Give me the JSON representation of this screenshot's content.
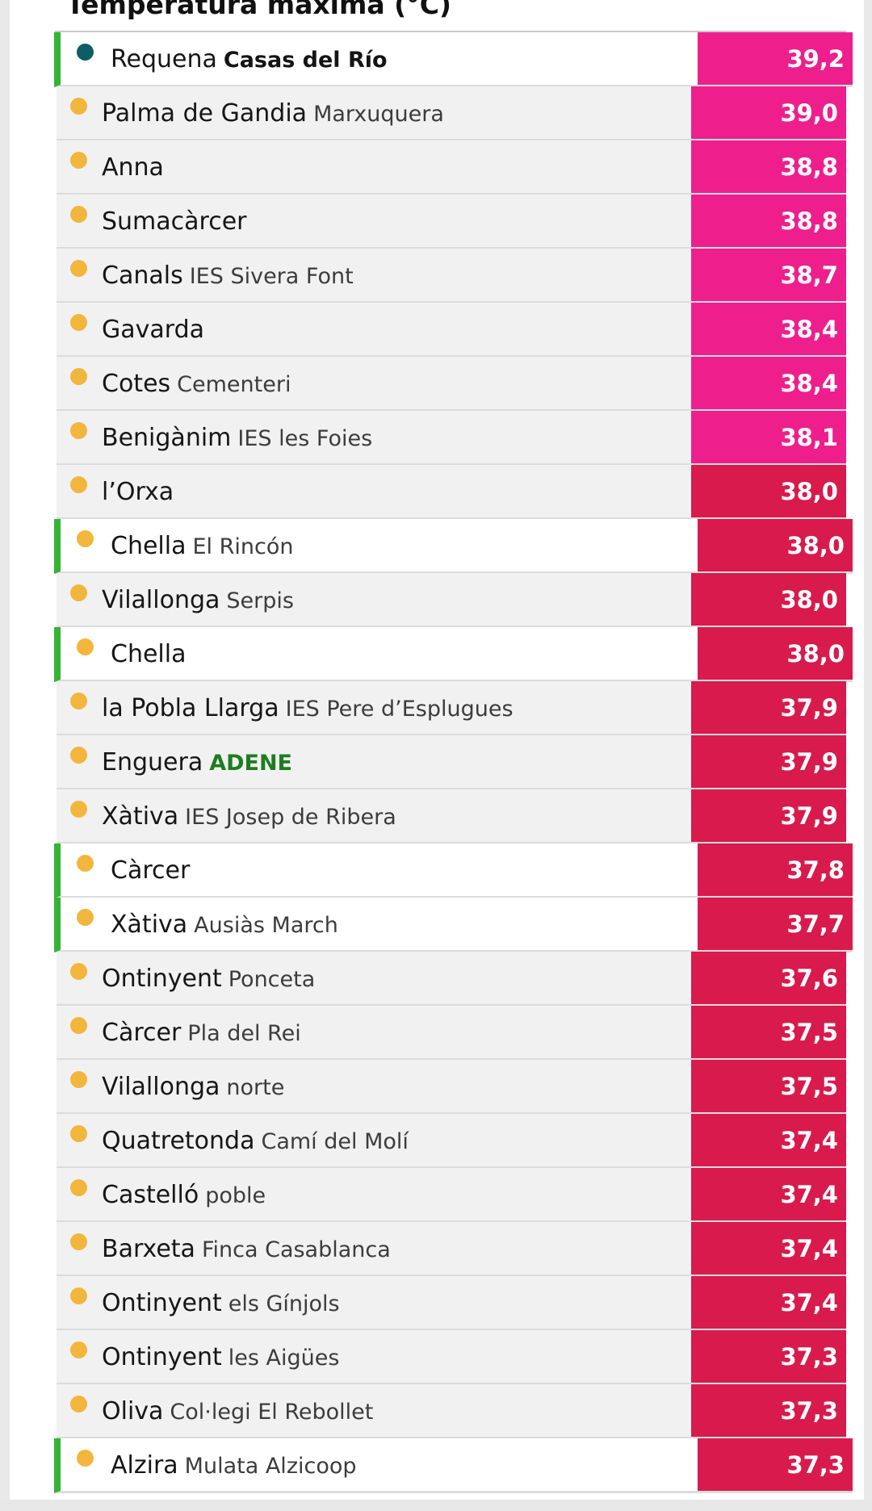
{
  "title": "Temperatura màxima (°C)",
  "colors": {
    "pink": "#ee1f8d",
    "red": "#d91a4c",
    "highlight": "#33b533",
    "dot_yellow": "#f2b63c",
    "dot_teal": "#0c5e63"
  },
  "rows": [
    {
      "name": "Requena",
      "sub": "Casas del Río",
      "sub_style": "bold",
      "value": "39,2",
      "hl": true,
      "dot": "teal",
      "band": "pink"
    },
    {
      "name": "Palma de Gandia",
      "sub": "Marxuquera",
      "value": "39,0",
      "hl": false,
      "dot": "yellow",
      "band": "pink"
    },
    {
      "name": "Anna",
      "sub": "",
      "value": "38,8",
      "hl": false,
      "dot": "yellow",
      "band": "pink"
    },
    {
      "name": "Sumacàrcer",
      "sub": "",
      "value": "38,8",
      "hl": false,
      "dot": "yellow",
      "band": "pink"
    },
    {
      "name": "Canals",
      "sub": "IES Sivera Font",
      "value": "38,7",
      "hl": false,
      "dot": "yellow",
      "band": "pink"
    },
    {
      "name": "Gavarda",
      "sub": "",
      "value": "38,4",
      "hl": false,
      "dot": "yellow",
      "band": "pink"
    },
    {
      "name": "Cotes",
      "sub": "Cementeri",
      "value": "38,4",
      "hl": false,
      "dot": "yellow",
      "band": "pink"
    },
    {
      "name": "Benigànim",
      "sub": "IES les Foies",
      "value": "38,1",
      "hl": false,
      "dot": "yellow",
      "band": "pink"
    },
    {
      "name": "l’Orxa",
      "sub": "",
      "value": "38,0",
      "hl": false,
      "dot": "yellow",
      "band": "red"
    },
    {
      "name": "Chella",
      "sub": "El Rincón",
      "value": "38,0",
      "hl": true,
      "dot": "yellow",
      "band": "red"
    },
    {
      "name": "Vilallonga",
      "sub": "Serpis",
      "value": "38,0",
      "hl": false,
      "dot": "yellow",
      "band": "red"
    },
    {
      "name": "Chella",
      "sub": "",
      "value": "38,0",
      "hl": true,
      "dot": "yellow",
      "band": "red"
    },
    {
      "name": "la Pobla Llarga",
      "sub": "IES Pere d’Esplugues",
      "value": "37,9",
      "hl": false,
      "dot": "yellow",
      "band": "red"
    },
    {
      "name": "Enguera",
      "sub": "ADENE",
      "sub_style": "green",
      "value": "37,9",
      "hl": false,
      "dot": "yellow",
      "band": "red"
    },
    {
      "name": "Xàtiva",
      "sub": "IES Josep de Ribera",
      "value": "37,9",
      "hl": false,
      "dot": "yellow",
      "band": "red"
    },
    {
      "name": "Càrcer",
      "sub": "",
      "value": "37,8",
      "hl": true,
      "dot": "yellow",
      "band": "red"
    },
    {
      "name": "Xàtiva",
      "sub": "Ausiàs March",
      "value": "37,7",
      "hl": true,
      "dot": "yellow",
      "band": "red"
    },
    {
      "name": "Ontinyent",
      "sub": "Ponceta",
      "value": "37,6",
      "hl": false,
      "dot": "yellow",
      "band": "red"
    },
    {
      "name": "Càrcer",
      "sub": "Pla del Rei",
      "value": "37,5",
      "hl": false,
      "dot": "yellow",
      "band": "red"
    },
    {
      "name": "Vilallonga",
      "sub": "norte",
      "value": "37,5",
      "hl": false,
      "dot": "yellow",
      "band": "red"
    },
    {
      "name": "Quatretonda",
      "sub": "Camí del Molí",
      "value": "37,4",
      "hl": false,
      "dot": "yellow",
      "band": "red"
    },
    {
      "name": "Castelló",
      "sub": "poble",
      "value": "37,4",
      "hl": false,
      "dot": "yellow",
      "band": "red"
    },
    {
      "name": "Barxeta",
      "sub": "Finca Casablanca",
      "value": "37,4",
      "hl": false,
      "dot": "yellow",
      "band": "red"
    },
    {
      "name": "Ontinyent",
      "sub": "els Gínjols",
      "value": "37,4",
      "hl": false,
      "dot": "yellow",
      "band": "red"
    },
    {
      "name": "Ontinyent",
      "sub": "les Aigües",
      "value": "37,3",
      "hl": false,
      "dot": "yellow",
      "band": "red"
    },
    {
      "name": "Oliva",
      "sub": "Col·legi El Rebollet",
      "value": "37,3",
      "hl": false,
      "dot": "yellow",
      "band": "red"
    },
    {
      "name": "Alzira",
      "sub": "Mulata Alzicoop",
      "value": "37,3",
      "hl": true,
      "dot": "yellow",
      "band": "red"
    }
  ]
}
